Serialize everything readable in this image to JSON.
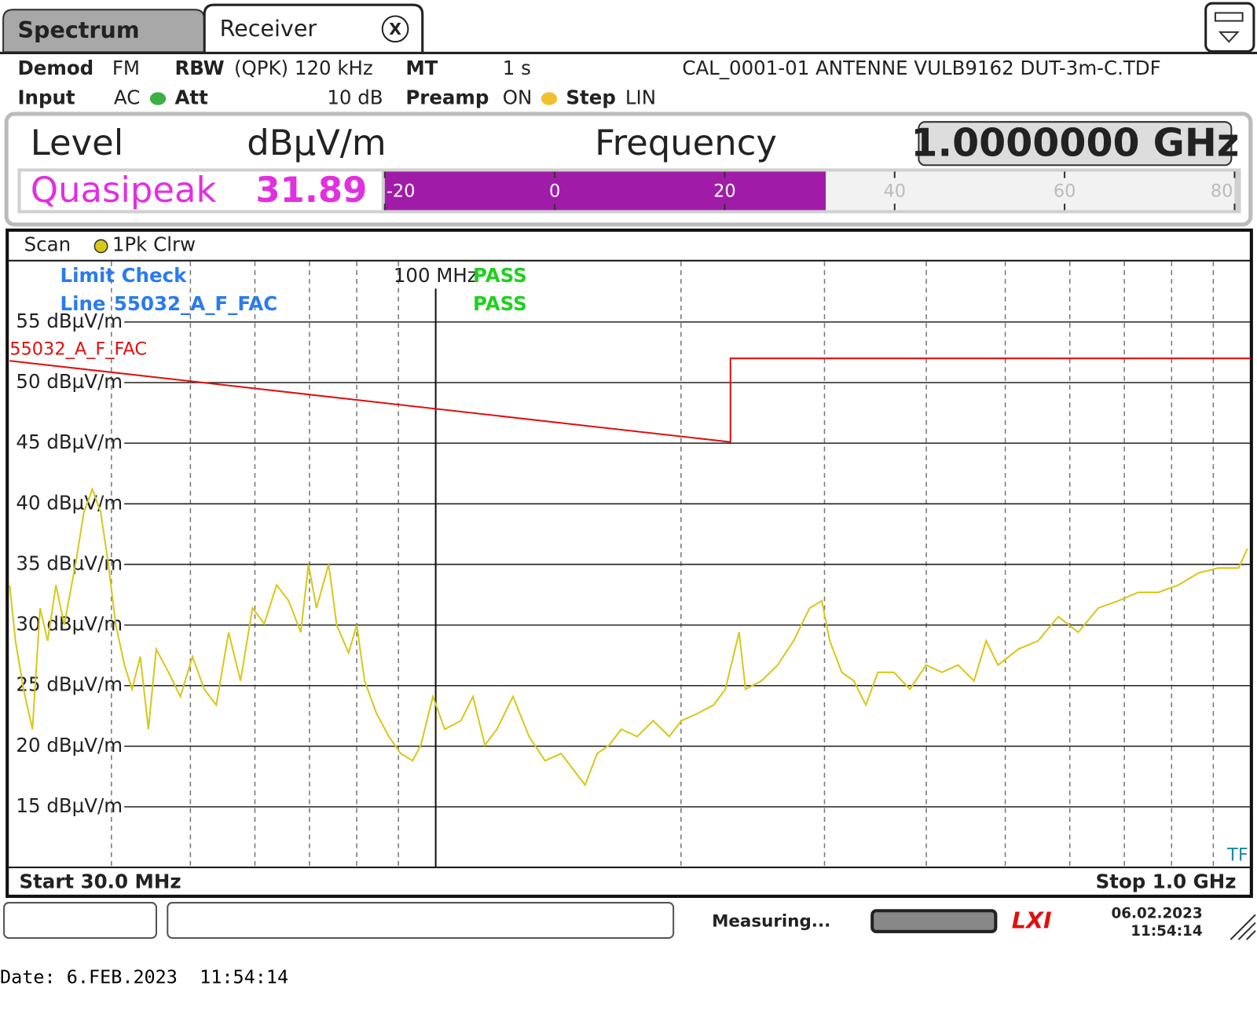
{
  "header": {
    "tabs": [
      "Spectrum",
      "Receiver"
    ],
    "close": "X"
  },
  "settings": {
    "demod_label": "Demod",
    "demod": "FM",
    "rbw_label": "RBW",
    "rbw": "(QPK) 120 kHz",
    "mt_label": "MT",
    "mt": "1 s",
    "transducer": "CAL_0001-01 ANTENNE VULB9162 DUT-3m-C.TDF",
    "input_label": "Input",
    "input": "AC",
    "att_label": "Att",
    "att": "10 dB",
    "preamp_label": "Preamp",
    "preamp": "ON",
    "step_label": "Step",
    "step": "LIN"
  },
  "readout": {
    "level_label": "Level",
    "unit": "dBµV/m",
    "frequency_label": "Frequency",
    "frequency": "1.0000000 GHz",
    "detector": "Quasipeak",
    "value": 31.89,
    "bar": {
      "xlim": [
        -20,
        80
      ],
      "xticks": [
        -20,
        0,
        20,
        40,
        60,
        80
      ],
      "color": "#a01ca8"
    }
  },
  "chart_data": {
    "type": "line",
    "scan_label": "Scan",
    "limit_check": {
      "title": "Limit Check",
      "result": "PASS",
      "line_label": "Line",
      "line_result": "PASS"
    },
    "marker": {
      "x": 100,
      "label": "100 MHz"
    },
    "start_label": "Start 30.0 MHz",
    "stop_label": "Stop 1.0 GHz",
    "corner_label": "TF",
    "xscale": "log",
    "xlim": [
      30,
      1000
    ],
    "xgrid": [
      40,
      50,
      60,
      70,
      80,
      90,
      200,
      300,
      400,
      500,
      600,
      700,
      800,
      900
    ],
    "ylim": [
      10,
      60
    ],
    "yticks": [
      {
        "value": 15,
        "label": "15 dBµV/m"
      },
      {
        "value": 20,
        "label": "20 dBµV/m"
      },
      {
        "value": 25,
        "label": "25 dBµV/m"
      },
      {
        "value": 30,
        "label": "30 dBµV/m"
      },
      {
        "value": 35,
        "label": "35 dBµV/m"
      },
      {
        "value": 40,
        "label": "40 dBµV/m"
      },
      {
        "value": 45,
        "label": "45 dBµV/m"
      },
      {
        "value": 50,
        "label": "50 dBµV/m"
      },
      {
        "value": 55,
        "label": "55 dBµV/m"
      }
    ],
    "grid": true,
    "x": [
      30.0,
      30.5,
      31.2,
      32.0,
      32.7,
      33.4,
      34.2,
      35.0,
      36.2,
      37.0,
      37.9,
      38.8,
      39.6,
      40.5,
      41.5,
      42.4,
      43.4,
      44.4,
      45.4,
      47.0,
      48.6,
      50.3,
      52.0,
      53.8,
      55.7,
      57.6,
      59.6,
      61.6,
      63.8,
      66.0,
      68.3,
      69.8,
      71.4,
      73.9,
      75.6,
      78.2,
      80.0,
      81.8,
      84.6,
      87.6,
      90.6,
      93.7,
      95.9,
      99.2,
      102.6,
      107.4,
      111.1,
      114.9,
      118.9,
      124.4,
      130.2,
      136.2,
      142.5,
      147.4,
      152.5,
      157.8,
      163.3,
      168.9,
      176.7,
      184.9,
      193.5,
      200.2,
      209.5,
      219.2,
      226.7,
      235.7,
      240.0,
      251.1,
      262.8,
      274.9,
      287.7,
      297.7,
      304.5,
      315.0,
      325.9,
      337.2,
      348.8,
      365.0,
      381.9,
      399.6,
      418.1,
      437.5,
      457.7,
      473.6,
      489.9,
      518.5,
      548.7,
      580.7,
      614.5,
      650.3,
      688.2,
      728.3,
      770.7,
      815.6,
      863.2,
      913.4,
      966.7,
      991.0
    ],
    "series": [
      {
        "name": "1Pk Clrw",
        "color": "#d8c81c",
        "values": [
          33.3,
          28.7,
          24.7,
          21.4,
          31.4,
          28.7,
          33.3,
          30.0,
          35.3,
          39.3,
          41.2,
          39.3,
          35.3,
          30.0,
          26.7,
          24.7,
          27.4,
          21.4,
          28.0,
          26.1,
          24.1,
          27.4,
          24.7,
          23.4,
          29.4,
          25.4,
          31.4,
          30.1,
          33.3,
          32.0,
          29.4,
          35.0,
          31.4,
          35.0,
          30.0,
          27.7,
          30.0,
          25.4,
          22.7,
          20.8,
          19.4,
          18.8,
          20.1,
          24.1,
          21.4,
          22.1,
          24.1,
          20.1,
          21.4,
          24.1,
          20.8,
          18.8,
          19.4,
          18.1,
          16.8,
          19.4,
          20.1,
          21.4,
          20.8,
          22.1,
          20.8,
          22.1,
          22.7,
          23.4,
          24.7,
          29.4,
          24.7,
          25.4,
          26.7,
          28.7,
          31.4,
          32.0,
          28.7,
          26.1,
          25.4,
          23.4,
          26.1,
          26.1,
          24.7,
          26.7,
          26.1,
          26.7,
          25.4,
          28.7,
          26.7,
          28.0,
          28.7,
          30.7,
          29.4,
          31.4,
          32.0,
          32.7,
          32.7,
          33.3,
          34.3,
          34.7,
          34.7,
          36.3
        ]
      },
      {
        "name": "55032_A_F_FAC",
        "color": "#e01010",
        "x": [
          30,
          230,
          230,
          1000
        ],
        "values": [
          51.8,
          45.1,
          52.0,
          52.0
        ]
      }
    ]
  },
  "status": {
    "state": "Measuring...",
    "logo": "LXI",
    "date": "06.02.2023",
    "time": "11:54:14"
  },
  "footer": "Date: 6.FEB.2023  11:54:14"
}
